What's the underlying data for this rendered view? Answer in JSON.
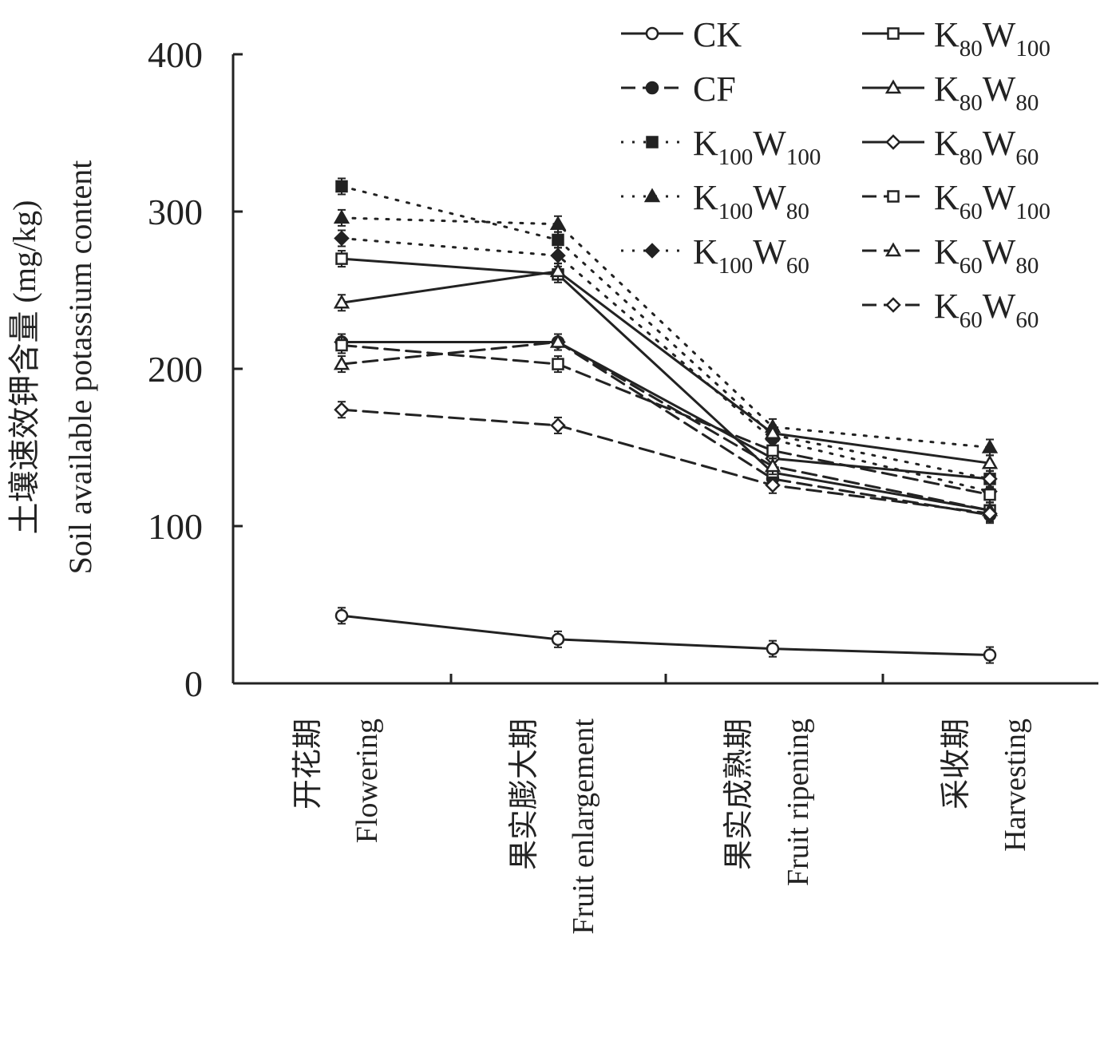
{
  "chart_data": {
    "type": "line",
    "ylabel_cn": "土壤速效钾含量 (mg/kg)",
    "ylabel_en": "Soil available potassium content",
    "ylim": [
      0,
      400
    ],
    "yticks": [
      "0",
      "100",
      "200",
      "300",
      "400"
    ],
    "categories": [
      {
        "cn": "开花期",
        "en": "Flowering"
      },
      {
        "cn": "果实膨大期",
        "en": "Fruit enlargement"
      },
      {
        "cn": "果实成熟期",
        "en": "Fruit ripening"
      },
      {
        "cn": "采收期",
        "en": "Harvesting"
      }
    ],
    "legend_placement": "top-right",
    "grid": false,
    "series": [
      {
        "name": "CK",
        "legend_main": "CK",
        "legend_sub": [],
        "marker": "circle",
        "fill": "open",
        "dash": "solid",
        "values": [
          43,
          28,
          22,
          18
        ]
      },
      {
        "name": "CF",
        "legend_main": "CF",
        "legend_sub": [],
        "marker": "circle",
        "fill": "filled",
        "dash": "dashed",
        "values": [
          217,
          217,
          130,
          107
        ]
      },
      {
        "name": "K100W100",
        "legend_main": [
          "K",
          "W"
        ],
        "legend_sub": [
          "100",
          "100"
        ],
        "marker": "square",
        "fill": "filled",
        "dash": "dotted",
        "values": [
          316,
          282,
          158,
          130
        ]
      },
      {
        "name": "K100W80",
        "legend_main": [
          "K",
          "W"
        ],
        "legend_sub": [
          "100",
          "80"
        ],
        "marker": "triangle",
        "fill": "filled",
        "dash": "dotted",
        "values": [
          296,
          292,
          163,
          150
        ]
      },
      {
        "name": "K100W60",
        "legend_main": [
          "K",
          "W"
        ],
        "legend_sub": [
          "100",
          "60"
        ],
        "marker": "diamond",
        "fill": "filled",
        "dash": "dotted",
        "values": [
          283,
          272,
          155,
          122
        ]
      },
      {
        "name": "K80W100",
        "legend_main": [
          "K",
          "W"
        ],
        "legend_sub": [
          "80",
          "100"
        ],
        "marker": "square",
        "fill": "open",
        "dash": "solid",
        "values": [
          270,
          260,
          134,
          110
        ]
      },
      {
        "name": "K80W80",
        "legend_main": [
          "K",
          "W"
        ],
        "legend_sub": [
          "80",
          "80"
        ],
        "marker": "triangle",
        "fill": "open",
        "dash": "solid",
        "values": [
          242,
          262,
          159,
          140
        ]
      },
      {
        "name": "K80W60",
        "legend_main": [
          "K",
          "W"
        ],
        "legend_sub": [
          "80",
          "60"
        ],
        "marker": "diamond",
        "fill": "open",
        "dash": "solid",
        "values": [
          217,
          217,
          143,
          130
        ]
      },
      {
        "name": "K60W100",
        "legend_main": [
          "K",
          "W"
        ],
        "legend_sub": [
          "60",
          "100"
        ],
        "marker": "square",
        "fill": "open",
        "dash": "dashed",
        "values": [
          215,
          203,
          148,
          120
        ]
      },
      {
        "name": "K60W80",
        "legend_main": [
          "K",
          "W"
        ],
        "legend_sub": [
          "60",
          "80"
        ],
        "marker": "triangle",
        "fill": "open",
        "dash": "dashed",
        "values": [
          203,
          217,
          138,
          110
        ]
      },
      {
        "name": "K60W60",
        "legend_main": [
          "K",
          "W"
        ],
        "legend_sub": [
          "60",
          "60"
        ],
        "marker": "diamond",
        "fill": "open",
        "dash": "dashed",
        "values": [
          174,
          164,
          126,
          108
        ]
      }
    ]
  }
}
